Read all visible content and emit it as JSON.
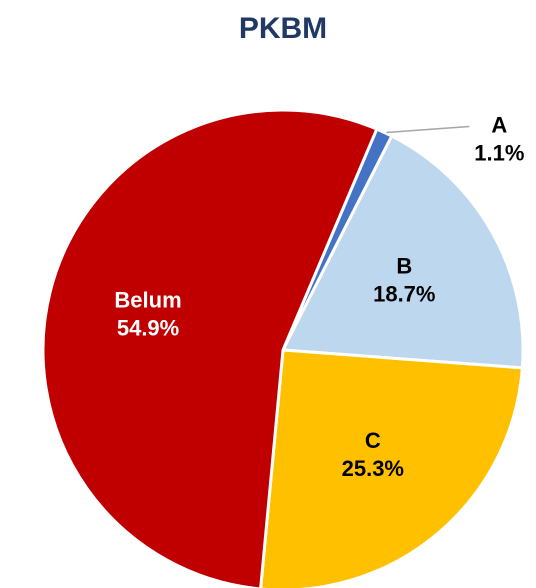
{
  "chart_data": {
    "type": "pie",
    "title": "PKBM",
    "categories": [
      "A",
      "B",
      "C",
      "Belum"
    ],
    "values": [
      1.1,
      18.7,
      25.3,
      54.9
    ],
    "value_labels": [
      "1.1%",
      "18.7%",
      "25.3%",
      "54.9%"
    ],
    "colors": [
      "#4472c4",
      "#bdd7ee",
      "#ffc000",
      "#c00000"
    ]
  }
}
